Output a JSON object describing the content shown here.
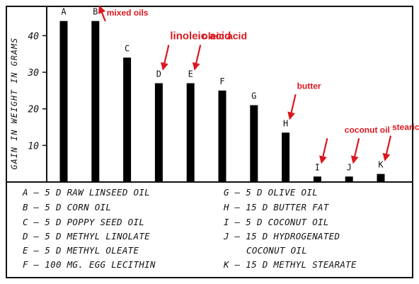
{
  "chart_data": {
    "type": "bar",
    "ylabel": "GAIN IN WEIGHT IN GRAMS",
    "ylim": [
      0,
      48
    ],
    "yticks": [
      10,
      20,
      30,
      40
    ],
    "yticklabels": [
      "10",
      "20",
      "30",
      "40"
    ],
    "grid": false,
    "categories": [
      "A",
      "B",
      "C",
      "D",
      "E",
      "F",
      "G",
      "H",
      "I",
      "J",
      "K"
    ],
    "values": [
      44,
      44,
      34,
      27,
      27,
      25,
      21,
      13.5,
      1.5,
      1.5,
      2.2
    ],
    "bar_color": "#000000",
    "annotations": [
      {
        "text": "mixed oils",
        "targets": [
          "B"
        ],
        "size": 12
      },
      {
        "text": "linoleic acid",
        "targets": [
          "D"
        ],
        "size": 15
      },
      {
        "text": "oleic acid",
        "targets": [
          "E"
        ],
        "size": 14
      },
      {
        "text": "butter",
        "targets": [
          "H"
        ],
        "size": 12
      },
      {
        "text": "coconut oil",
        "targets": [
          "I",
          "J"
        ],
        "size": 12
      },
      {
        "text": "stearic acid",
        "targets": [
          "K"
        ],
        "size": 12
      }
    ],
    "annotation_color": "#d9181e",
    "legend_left": [
      "A – 5 D RAW LINSEED OIL",
      "B – 5 D CORN OIL",
      "C – 5 D POPPY SEED OIL",
      "D – 5 D METHYL LINOLATE",
      "E – 5 D METHYL OLEATE",
      "F – 100 MG. EGG LECITHIN"
    ],
    "legend_right": [
      "G – 5 D OLIVE OIL",
      "H – 15 D BUTTER FAT",
      "I – 5 D COCONUT OIL",
      "J – 15 D HYDROGENATED",
      "COCONUT OIL",
      "K – 15 D METHYL STEARATE"
    ]
  }
}
